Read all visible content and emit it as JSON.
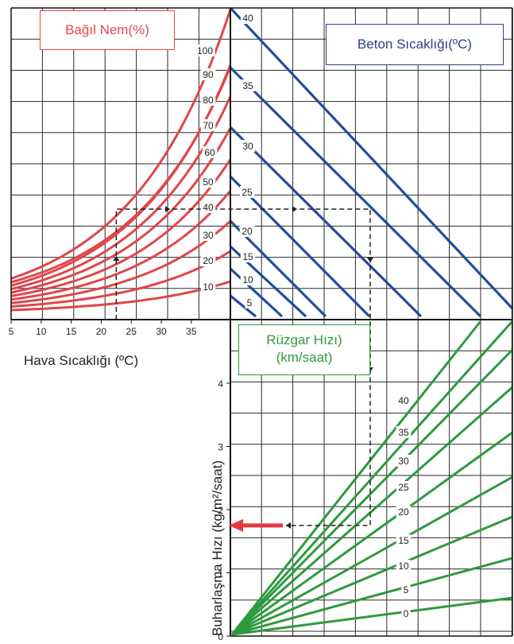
{
  "labels": {
    "rh_title": "Bağıl Nem(%)",
    "concrete_title": "Beton Sıcaklığı(ºC)",
    "wind_title_line1": "Rüzgar Hızı)",
    "wind_title_line2": "(km/saat)",
    "air_temp_axis": "Hava Sıcaklığı (ºC)",
    "evaporation_axis": "Buharlaşma Hızı (kg/m²/saat)"
  },
  "chart_data": {
    "type": "nomogram",
    "panels": [
      {
        "id": "relative-humidity",
        "x_axis": "Hava Sıcaklığı (ºC)",
        "x_ticks": [
          5,
          10,
          15,
          20,
          25,
          30,
          35
        ],
        "series_label": "Bağıl Nem(%)",
        "curves": [
          10,
          20,
          30,
          40,
          50,
          60,
          70,
          80,
          90,
          100
        ],
        "curve_labels": [
          "10",
          "20",
          "30",
          "40",
          "50",
          "60",
          "70",
          "80",
          "90",
          "100"
        ]
      },
      {
        "id": "concrete-temperature",
        "series_label": "Beton Sıcaklığı(ºC)",
        "lines": [
          5,
          10,
          15,
          20,
          25,
          30,
          35,
          40
        ],
        "line_labels": [
          "5",
          "10",
          "15",
          "20",
          "25",
          "30",
          "35",
          "40"
        ]
      },
      {
        "id": "wind-speed",
        "series_label": "Rüzgar Hızı) (km/saat)",
        "lines": [
          0,
          5,
          10,
          15,
          20,
          25,
          30,
          35,
          40
        ],
        "line_labels": [
          "0",
          "5",
          "10",
          "15",
          "20",
          "25",
          "30",
          "35",
          "40"
        ]
      },
      {
        "id": "evaporation-rate",
        "y_axis": "Buharlaşma Hızı (kg/m²/saat)",
        "y_ticks": [
          0,
          1,
          2,
          3,
          4
        ],
        "y_tick_labels": [
          "0",
          "1",
          "2",
          "3",
          "4"
        ]
      }
    ],
    "example_path": {
      "air_temperature": 22.5,
      "relative_humidity": 50,
      "concrete_temperature": 27,
      "wind_speed": 25,
      "evaporation_rate": 1.75
    },
    "colors": {
      "humidity": "#e0464a",
      "concrete": "#1f4f9c",
      "wind": "#2e9a3e",
      "result_arrow": "#e8383d",
      "grid": "#2a2a2a"
    }
  }
}
